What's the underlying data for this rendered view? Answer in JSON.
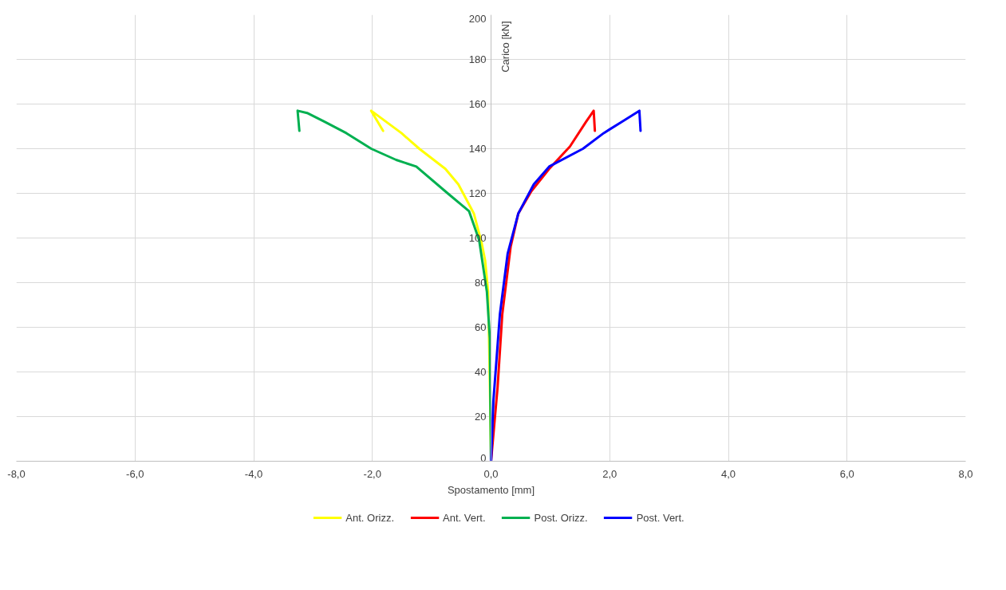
{
  "chart_data": {
    "type": "line",
    "xlabel": "Spostamento [mm]",
    "ylabel": "Carico [kN]",
    "xlim": [
      -8,
      8
    ],
    "xticks": [
      {
        "value": -8,
        "label": "-8,0"
      },
      {
        "value": -6,
        "label": "-6,0"
      },
      {
        "value": -4,
        "label": "-4,0"
      },
      {
        "value": -2,
        "label": "-2,0"
      },
      {
        "value": 0,
        "label": "0,0"
      },
      {
        "value": 2,
        "label": "2,0"
      },
      {
        "value": 4,
        "label": "4,0"
      },
      {
        "value": 6,
        "label": "6,0"
      },
      {
        "value": 8,
        "label": "8,0"
      }
    ],
    "ylim": [
      0,
      200
    ],
    "yticks": [
      0,
      20,
      40,
      60,
      80,
      100,
      120,
      140,
      160,
      180,
      200
    ],
    "grid": true,
    "legend": "bottom",
    "marker": "none",
    "line_style": "solid",
    "series": [
      {
        "name": "Ant. Orizz.",
        "color": "#ffff00",
        "x": [
          0,
          -0.01,
          -0.03,
          -0.05,
          -0.1,
          -0.16,
          -0.29,
          -0.55,
          -0.77,
          -1.21,
          -1.51,
          -2.02,
          -1.82
        ],
        "values": [
          0,
          20,
          50,
          76,
          90,
          98,
          111,
          124,
          131,
          140,
          147,
          157,
          148
        ]
      },
      {
        "name": "Ant. Vert.",
        "color": "#ff0000",
        "x": [
          0,
          0.05,
          0.11,
          0.19,
          0.33,
          0.46,
          0.68,
          0.98,
          1.33,
          1.6,
          1.73,
          1.75
        ],
        "values": [
          0,
          15,
          33,
          66,
          96,
          111,
          121,
          131,
          141,
          152,
          157,
          148
        ]
      },
      {
        "name": "Post. Orizz.",
        "color": "#00b050",
        "x": [
          0,
          -0.01,
          -0.02,
          -0.07,
          -0.2,
          -0.37,
          -0.73,
          -1.26,
          -1.6,
          -2.02,
          -2.44,
          -2.8,
          -3.1,
          -3.26,
          -3.23
        ],
        "values": [
          0,
          25,
          55,
          76,
          99,
          112,
          120,
          132,
          135,
          140,
          147,
          152,
          156,
          157,
          148
        ]
      },
      {
        "name": "Post. Vert.",
        "color": "#0000ff",
        "x": [
          0,
          0.04,
          0.15,
          0.28,
          0.46,
          0.72,
          0.98,
          1.55,
          1.9,
          2.2,
          2.5,
          2.52
        ],
        "values": [
          0,
          27,
          66,
          93,
          111,
          124,
          132,
          140,
          147,
          152,
          157,
          148
        ]
      }
    ]
  }
}
